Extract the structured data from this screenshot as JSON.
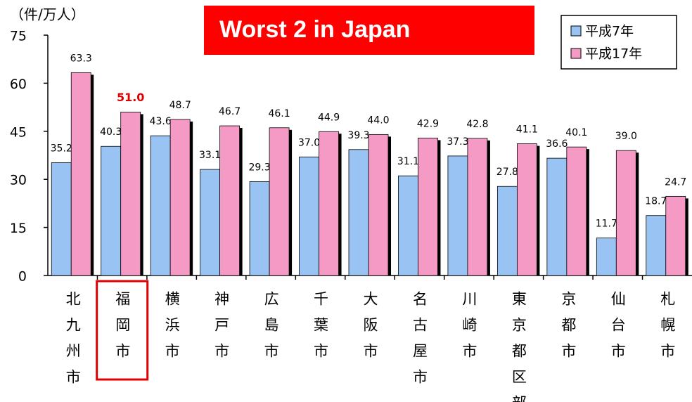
{
  "chart_data": {
    "type": "bar",
    "title": "Worst 2 in Japan",
    "unit_label": "（件/万人）",
    "categories": [
      "北九州市",
      "福岡市",
      "横浜市",
      "神戸市",
      "広島市",
      "千葉市",
      "大阪市",
      "名古屋市",
      "川崎市",
      "東京都区部",
      "京都市",
      "仙台市",
      "札幌市"
    ],
    "series": [
      {
        "name": "平成7年",
        "color": "#99c3f2",
        "values": [
          35.2,
          40.3,
          43.6,
          33.1,
          29.3,
          37.0,
          39.3,
          31.1,
          37.3,
          27.8,
          36.6,
          11.7,
          18.7
        ],
        "value_labels": [
          "35.2",
          "40.3",
          "43.6",
          "33.1",
          "29.3",
          "37.0",
          "39.3",
          "31.1",
          "37.3",
          "27.8",
          "36.6",
          "11.7",
          "18.7"
        ]
      },
      {
        "name": "平成17年",
        "color": "#f59ac4",
        "values": [
          63.3,
          51.0,
          48.7,
          46.7,
          46.1,
          44.9,
          44.0,
          42.9,
          42.8,
          41.1,
          40.1,
          39.0,
          24.7
        ],
        "value_labels": [
          "63.3",
          "51.0",
          "48.7",
          "46.7",
          "46.1",
          "44.9",
          "44.0",
          "42.9",
          "42.8",
          "41.1",
          "40.1",
          "39.0",
          "24.7"
        ]
      }
    ],
    "ylim": [
      0,
      75
    ],
    "yticks": [
      0,
      15,
      30,
      45,
      60,
      75
    ],
    "grid": false,
    "legend": "top-right",
    "highlight_index": 1,
    "highlight_color": "#e00000",
    "title_color": "#ff0000"
  }
}
